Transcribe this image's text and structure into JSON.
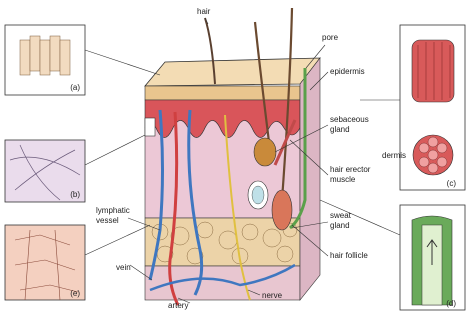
{
  "labels": [
    {
      "lines": [
        "hair"
      ]
    },
    {
      "lines": [
        "pore"
      ]
    },
    {
      "lines": [
        "epidermis"
      ]
    },
    {
      "lines": [
        "sebaceous",
        "gland"
      ]
    },
    {
      "lines": [
        "dermis"
      ]
    },
    {
      "lines": [
        "hair erector",
        "muscle"
      ]
    },
    {
      "lines": [
        "sweat",
        "gland"
      ]
    },
    {
      "lines": [
        "hair follicle"
      ]
    },
    {
      "lines": [
        "nerve"
      ]
    },
    {
      "lines": [
        "artery"
      ]
    },
    {
      "lines": [
        "vein"
      ]
    },
    {
      "lines": [
        "lymphatic",
        "vessel"
      ]
    }
  ],
  "panels": [
    {
      "label": "(a)"
    },
    {
      "label": "(b)"
    },
    {
      "label": "(c)"
    },
    {
      "label": "(d)"
    },
    {
      "label": "(e)"
    }
  ]
}
